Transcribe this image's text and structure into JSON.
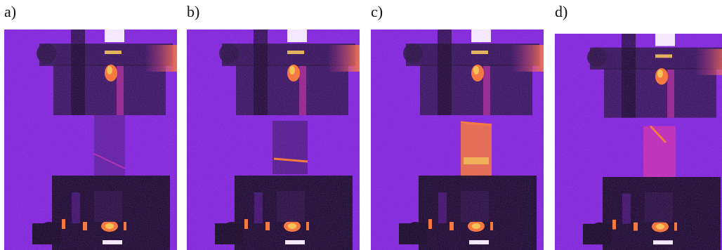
{
  "figure": {
    "panels": [
      {
        "label": "a)",
        "state": "a"
      },
      {
        "label": "b)",
        "state": "b"
      },
      {
        "label": "c)",
        "state": "c"
      },
      {
        "label": "d)",
        "state": "d"
      }
    ],
    "colors": {
      "background_purple": "#7a1fd6",
      "dark": "#1a0a2e",
      "black": "#05000d",
      "hot_orange": "#ff7a1a",
      "hot_yellow": "#ffd23a",
      "white": "#ffffff",
      "magenta": "#d62a9e"
    }
  }
}
